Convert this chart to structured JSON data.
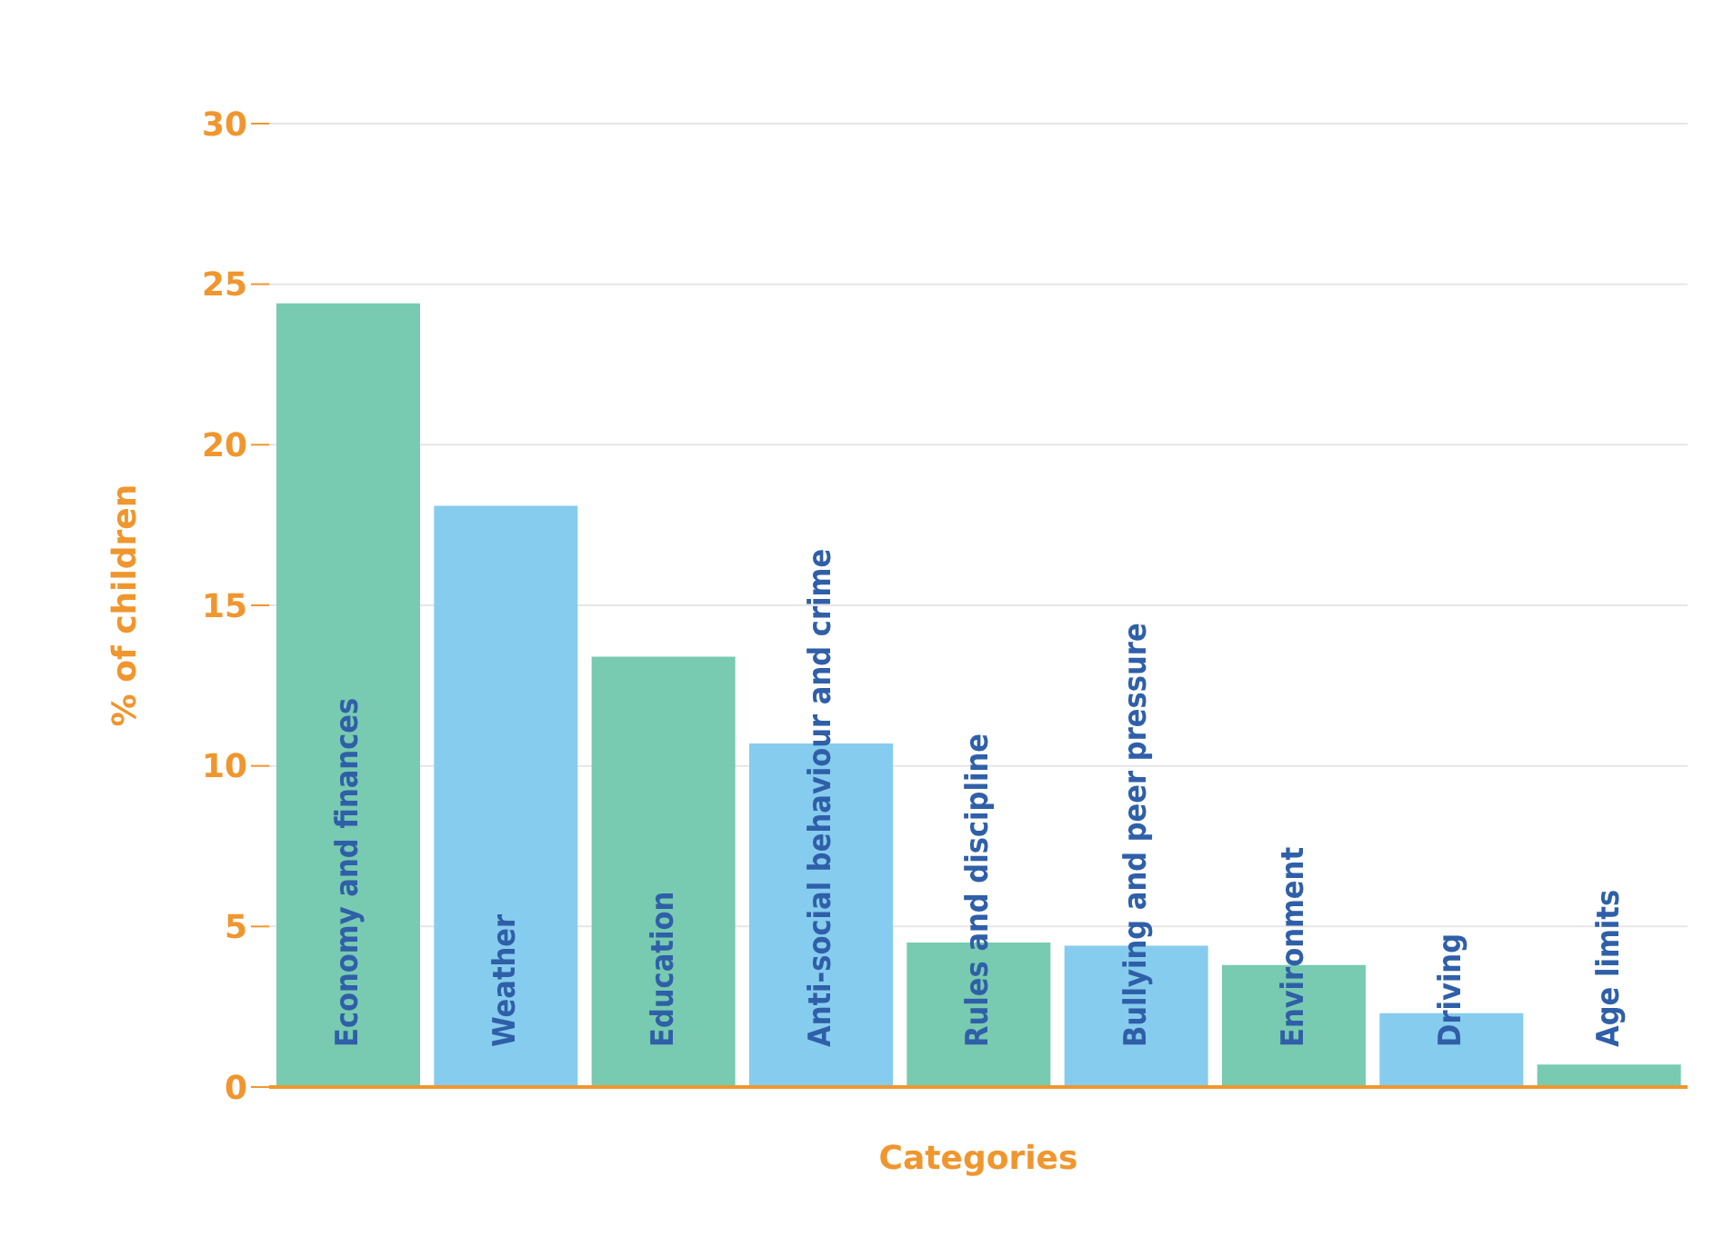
{
  "chart_data": {
    "type": "bar",
    "xlabel": "Categories",
    "ylabel": "% of children",
    "categories": [
      "Economy and finances",
      "Weather",
      "Education",
      "Anti-social behaviour and crime",
      "Rules and discipline",
      "Bullying and peer pressure",
      "Environment",
      "Driving",
      "Age limits"
    ],
    "values": [
      24.4,
      18.1,
      13.4,
      10.7,
      4.5,
      4.4,
      3.8,
      2.3,
      0.7
    ],
    "colors": [
      "#78cbb0",
      "#86ccee",
      "#78cbb0",
      "#86ccee",
      "#78cbb0",
      "#86ccee",
      "#78cbb0",
      "#86ccee",
      "#78cbb0"
    ],
    "ylim": [
      0,
      30
    ],
    "yticks": [
      0,
      5,
      10,
      15,
      20,
      25,
      30
    ],
    "grid": "y"
  }
}
